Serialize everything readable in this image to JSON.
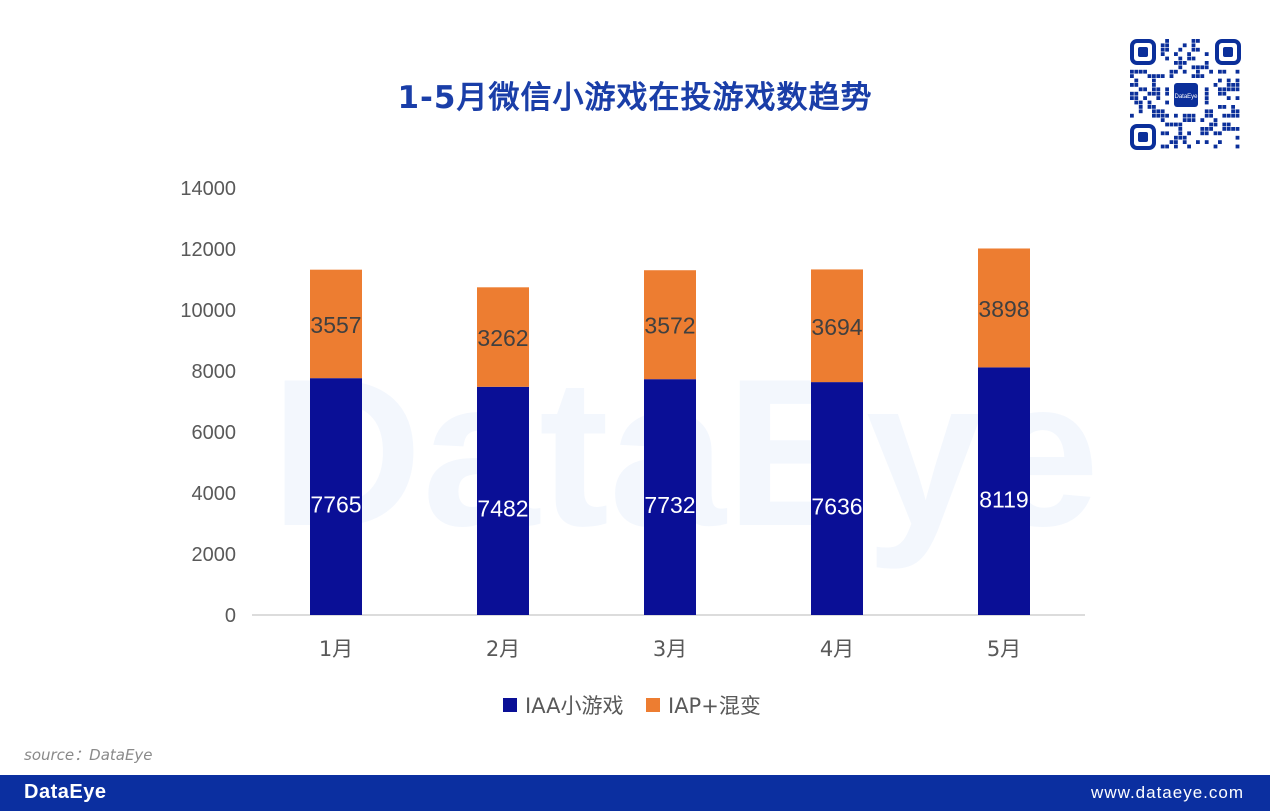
{
  "header": {
    "title": "1-5月微信小游戏在投游戏数趋势"
  },
  "watermark": {
    "text": "DataEye"
  },
  "qr": {
    "center_label": "DataEye"
  },
  "chart_data": {
    "type": "bar",
    "stacked": true,
    "categories": [
      "1月",
      "2月",
      "3月",
      "4月",
      "5月"
    ],
    "series": [
      {
        "name": "IAA小游戏",
        "color": "#0a0f96",
        "label_color": "#ffffff",
        "values": [
          7765,
          7482,
          7732,
          7636,
          8119
        ]
      },
      {
        "name": "IAP+混变",
        "color": "#ed7d31",
        "label_color": "#404040",
        "values": [
          3557,
          3262,
          3572,
          3694,
          3898
        ]
      }
    ],
    "ylim": [
      0,
      14000
    ],
    "yticks": [
      0,
      2000,
      4000,
      6000,
      8000,
      10000,
      12000,
      14000
    ],
    "grid": false,
    "legend": "bottom-center"
  },
  "source": {
    "text": "source：DataEye"
  },
  "footer": {
    "brand": "DataEye",
    "url": "www.dataeye.com",
    "bg_color": "#0b2fa0"
  }
}
